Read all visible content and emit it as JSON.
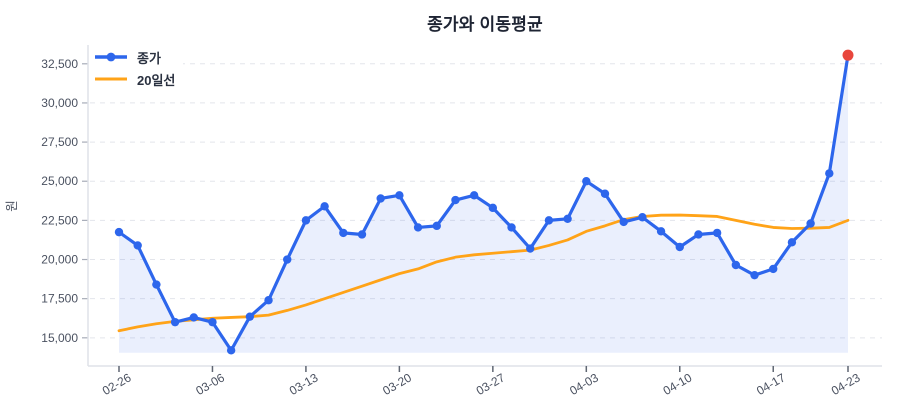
{
  "title": "종가와 이동평균",
  "colors": {
    "close_line": "#2d66ec",
    "ma_line": "#ffa318",
    "last_point": "#e8463c",
    "area_fill": "rgba(45,102,236,0.10)",
    "grid": "#e3e5eb",
    "spine": "#dfe2e8",
    "axis_tick": "#5f6672",
    "y_tick_mark": "#a7acb8",
    "tick_label": "#4a5160",
    "title_text": "#1e2433",
    "legend_text": "#2a3140"
  },
  "legend": {
    "items": [
      {
        "label": "종가"
      },
      {
        "label": "20일선"
      }
    ]
  },
  "chart_data": {
    "type": "line",
    "title": "종가와 이동평균",
    "xlabel": "",
    "ylabel": "원",
    "grid": "horizontal-dashed",
    "legend_position": "top-left",
    "x_tick_labels": [
      "02-26",
      "03-06",
      "03-13",
      "03-20",
      "03-27",
      "04-03",
      "04-10",
      "04-17",
      "04-23"
    ],
    "x_tick_indices": [
      0,
      5,
      10,
      15,
      20,
      25,
      30,
      35,
      39
    ],
    "y_ticks": [
      15000,
      17500,
      20000,
      22500,
      25000,
      27500,
      30000,
      32500
    ],
    "ylim": [
      13200,
      33700
    ],
    "fill_baseline_value": 14050,
    "series": [
      {
        "name": "종가",
        "style": "line+markers",
        "values": [
          21750,
          20900,
          18400,
          16000,
          16300,
          16000,
          14200,
          16350,
          17400,
          20000,
          22500,
          23400,
          21700,
          21600,
          23900,
          24100,
          22050,
          22150,
          23800,
          24100,
          23300,
          22050,
          20700,
          22500,
          22600,
          25000,
          24200,
          22400,
          22700,
          21800,
          20800,
          21600,
          21700,
          19650,
          19000,
          19400,
          21100,
          22300,
          25500,
          33050
        ],
        "last_point_highlighted": true
      },
      {
        "name": "20일선",
        "style": "line",
        "values": [
          15450,
          15700,
          15900,
          16050,
          16150,
          16250,
          16300,
          16350,
          16450,
          16750,
          17100,
          17500,
          17900,
          18300,
          18700,
          19100,
          19400,
          19850,
          20150,
          20300,
          20400,
          20500,
          20600,
          20900,
          21250,
          21800,
          22150,
          22550,
          22750,
          22830,
          22840,
          22800,
          22750,
          22500,
          22250,
          22050,
          21980,
          22000,
          22050,
          22500
        ],
        "last_point_highlighted": false
      }
    ]
  }
}
